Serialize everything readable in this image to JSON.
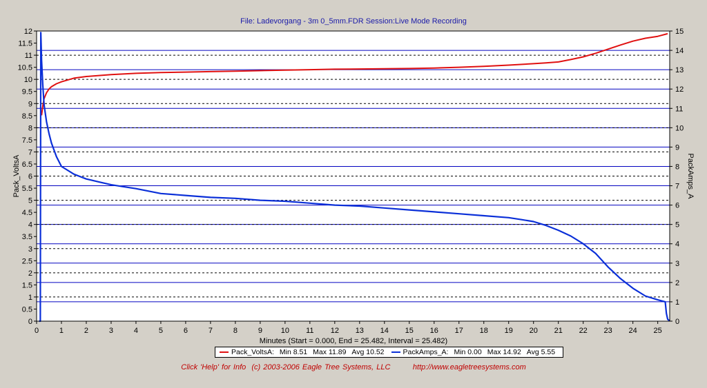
{
  "header": {
    "title": "File: Ladevorgang - 3m 0_5mm.FDR   Session:Live Mode Recording"
  },
  "xaxis": {
    "label": "Minutes (Start = 0.000,  End = 25.482,  Interval =  25.482)"
  },
  "legend": {
    "entries": [
      {
        "name": "Pack_VoltsA:",
        "min": "Min 8.51",
        "max": "Max 11.89",
        "avg": "Avg 10.52"
      },
      {
        "name": "PackAmps_A:",
        "min": "Min 0.00",
        "max": "Max 14.92",
        "avg": "Avg 5.55"
      }
    ]
  },
  "footer": {
    "help_text": "Click 'Help' for Info  (c) 2003-2006 Eagle Tree Systems, LLC",
    "url": "http://www.eagletreesystems.com"
  },
  "colors": {
    "plot_background": "#ffffff",
    "grid": "#0000c0",
    "volts": "#e01010",
    "amps": "#0a2fd8"
  },
  "chart_data": {
    "type": "line",
    "title": "File: Ladevorgang - 3m 0_5mm.FDR   Session:Live Mode Recording",
    "xlabel": "Minutes (Start = 0.000,  End = 25.482,  Interval =  25.482)",
    "ylabel_left": "Pack_VoltsA",
    "ylabel_right": "PackAmps_A",
    "xlim": [
      0,
      25.482
    ],
    "ylim_left": [
      0,
      12
    ],
    "ylim_right": [
      0,
      15
    ],
    "x_ticks": [
      "0",
      "1",
      "2",
      "3",
      "4",
      "5",
      "6",
      "7",
      "8",
      "9",
      "10",
      "11",
      "12",
      "13",
      "14",
      "15",
      "16",
      "17",
      "18",
      "19",
      "20",
      "21",
      "22",
      "23",
      "24",
      "25"
    ],
    "y_left_ticks": [
      "0",
      "0.5",
      "1",
      "1.5",
      "2",
      "2.5",
      "3",
      "3.5",
      "4",
      "4.5",
      "5",
      "5.5",
      "6",
      "6.5",
      "7",
      "7.5",
      "8",
      "8.5",
      "9",
      "9.5",
      "10",
      "10.5",
      "11",
      "11.5",
      "12"
    ],
    "y_right_ticks": [
      "0",
      "1",
      "2",
      "3",
      "4",
      "5",
      "6",
      "7",
      "8",
      "9",
      "10",
      "11",
      "12",
      "13",
      "14",
      "15"
    ],
    "grid": true,
    "series": [
      {
        "name": "Pack_VoltsA",
        "axis": "left",
        "x": [
          0.2,
          0.25,
          0.3,
          0.4,
          0.5,
          0.6,
          0.8,
          1.0,
          1.5,
          2,
          3,
          4,
          5,
          6,
          7,
          8,
          9,
          10,
          11,
          12,
          13,
          14,
          15,
          16,
          17,
          18,
          19,
          20,
          20.5,
          21,
          21.5,
          22,
          22.5,
          23,
          23.5,
          24,
          24.5,
          25,
          25.4
        ],
        "values": [
          8.51,
          8.9,
          9.2,
          9.45,
          9.6,
          9.7,
          9.82,
          9.9,
          10.05,
          10.12,
          10.2,
          10.25,
          10.28,
          10.3,
          10.32,
          10.34,
          10.36,
          10.38,
          10.4,
          10.42,
          10.43,
          10.44,
          10.45,
          10.47,
          10.5,
          10.54,
          10.59,
          10.65,
          10.68,
          10.72,
          10.82,
          10.93,
          11.08,
          11.25,
          11.42,
          11.58,
          11.7,
          11.78,
          11.89
        ]
      },
      {
        "name": "PackAmps_A",
        "axis": "right",
        "x": [
          0.1,
          0.15,
          0.17,
          0.2,
          0.25,
          0.3,
          0.4,
          0.5,
          0.6,
          0.8,
          1.0,
          1.5,
          2,
          2.5,
          3,
          3.5,
          4,
          5,
          6,
          7,
          8,
          9,
          10,
          11,
          12,
          13,
          14,
          15,
          16,
          17,
          18,
          19,
          19.5,
          20,
          20.5,
          21,
          21.5,
          22,
          22.5,
          23,
          23.5,
          24,
          24.5,
          25,
          25.3,
          25.35,
          25.4,
          25.45,
          25.48
        ],
        "values": [
          0,
          0,
          14.92,
          13.5,
          12.2,
          11.2,
          10.3,
          9.7,
          9.2,
          8.5,
          8.0,
          7.6,
          7.35,
          7.2,
          7.05,
          6.95,
          6.85,
          6.6,
          6.5,
          6.4,
          6.35,
          6.25,
          6.2,
          6.1,
          6.0,
          5.95,
          5.85,
          5.75,
          5.65,
          5.55,
          5.45,
          5.35,
          5.25,
          5.15,
          4.95,
          4.7,
          4.4,
          4.0,
          3.5,
          2.8,
          2.2,
          1.7,
          1.3,
          1.1,
          1.0,
          0.4,
          0.1,
          0.05,
          0.0
        ]
      }
    ]
  }
}
